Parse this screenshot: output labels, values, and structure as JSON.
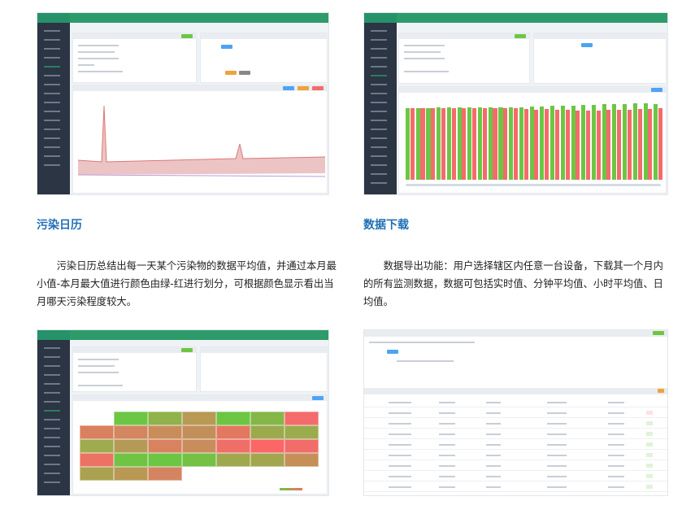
{
  "sections": [
    {
      "title": "污染日历",
      "text": "污染日历总结出每一天某个污染物的数据平均值，并通过本月最小值-本月最大值进行颜色由绿-红进行划分，可根据颜色显示看出当月哪天污染程度较大。"
    },
    {
      "title": "数据下载",
      "text": "数据导出功能：用户选择辖区内任意一台设备，下载其一个月内的所有监测数据，数据可包括实时值、分钟平均值、小时平均值、日均值。"
    }
  ],
  "colors": {
    "header": "#2e9b6b",
    "sidebar": "#2b3544",
    "title": "#1f6fb5",
    "green": "#6cc644",
    "red": "#f46b6b"
  },
  "bar_chart": {
    "type": "bar",
    "green": [
      27,
      27,
      27,
      27.2,
      27.3,
      27.3,
      27.2,
      27.2,
      27.3,
      27.3,
      27.3,
      27.4,
      27.5,
      27.6,
      27.9,
      28,
      28,
      28.1,
      28.2,
      28.4,
      28.6,
      28.6,
      28.7,
      28.7,
      28.6
    ],
    "red": [
      26.8,
      26.8,
      26.8,
      26.8,
      26.8,
      26.8,
      26.8,
      26.8,
      26.8,
      26.9,
      26.8,
      26.5,
      26.4,
      26.5,
      26.3,
      26.2,
      25.9,
      25.9,
      26.1,
      26.2,
      26.2,
      26.4,
      26.5,
      26.7,
      26.8
    ]
  },
  "calendar_colors": [
    [
      null,
      "#6cc644",
      "#8fb24a",
      "#b89a55",
      "#6cc644",
      "#84b748",
      "#f46b6b"
    ],
    [
      "#d9805e",
      "#d38660",
      "#c98d5c",
      "#c28f5a",
      "#e2785f",
      "#9caa4e",
      "#9aac4e"
    ],
    [
      "#9fab4f",
      "#b59a56",
      "#d88260",
      "#c98d5c",
      "#ef6f68",
      "#fb6666",
      "#f06d69"
    ],
    [
      "#ec7264",
      "#6fc444",
      "#6bc643",
      "#74c145",
      "#a0a84f",
      "#a2a74f",
      "#c49058"
    ],
    [
      "#aaa251",
      "#b99855",
      "#d58462",
      null,
      null,
      null,
      null
    ]
  ]
}
